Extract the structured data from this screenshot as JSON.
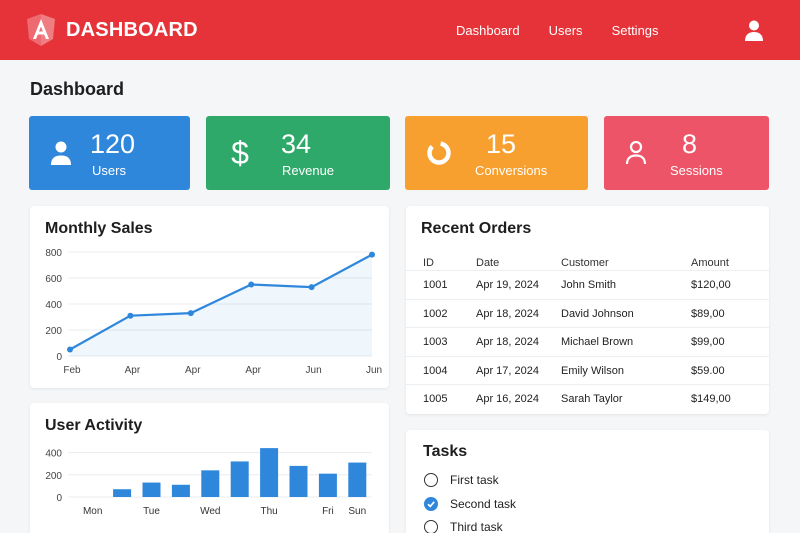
{
  "header": {
    "brand_title": "DASHBOARD",
    "brand_color": "#e63339",
    "nav": [
      "Dashboard",
      "Users",
      "Settings"
    ],
    "user_icon": "user-icon"
  },
  "page": {
    "title": "Dashboard"
  },
  "stats": [
    {
      "value": "120",
      "label": "Users",
      "color": "#2f87dc",
      "icon": "user-icon"
    },
    {
      "value": "34",
      "label": "Revenue",
      "color": "#2ea96a",
      "icon": "dollar-icon"
    },
    {
      "value": "15",
      "label": "Conversions",
      "color": "#f7a030",
      "icon": "donut-icon"
    },
    {
      "value": "8",
      "label": "Sessions",
      "color": "#ee5468",
      "icon": "user-outline-icon"
    }
  ],
  "monthly_sales": {
    "title": "Monthly Sales",
    "chart_data": {
      "type": "area",
      "categories": [
        "Feb",
        "Apr",
        "Apr",
        "Apr",
        "Jun",
        "Jun"
      ],
      "values": [
        50,
        310,
        330,
        550,
        530,
        780
      ],
      "ylim": [
        0,
        800
      ],
      "yticks": [
        0,
        200,
        400,
        600,
        800
      ],
      "grid": true,
      "color": "#2f87dc"
    }
  },
  "user_activity": {
    "title": "User Activity",
    "chart_data": {
      "type": "bar",
      "categories": [
        "Mon",
        "",
        "Tue",
        "",
        "Wed",
        "",
        "Thu",
        "",
        "Fri",
        "Sun"
      ],
      "values": [
        0,
        70,
        130,
        110,
        240,
        320,
        440,
        280,
        210,
        310
      ],
      "ylim": [
        0,
        450
      ],
      "yticks": [
        0,
        200,
        400
      ],
      "grid": true,
      "color": "#2f87dc"
    }
  },
  "recent_orders": {
    "title": "Recent Orders",
    "columns": [
      "ID",
      "Date",
      "Customer",
      "Amount"
    ],
    "rows": [
      [
        "1001",
        "Apr 19, 2024",
        "John Smith",
        "$120,00"
      ],
      [
        "1002",
        "Apr 18, 2024",
        "David Johnson",
        "$89,00"
      ],
      [
        "1003",
        "Apr 18, 2024",
        "Michael Brown",
        "$99,00"
      ],
      [
        "1004",
        "Apr 17, 2024",
        "Emily Wilson",
        "$59.00"
      ],
      [
        "1005",
        "Apr 16, 2024",
        "Sarah Taylor",
        "$149,00"
      ]
    ]
  },
  "tasks": {
    "title": "Tasks",
    "items": [
      {
        "label": "First task",
        "checked": false
      },
      {
        "label": "Second task",
        "checked": true
      },
      {
        "label": "Third task",
        "checked": false
      }
    ]
  }
}
